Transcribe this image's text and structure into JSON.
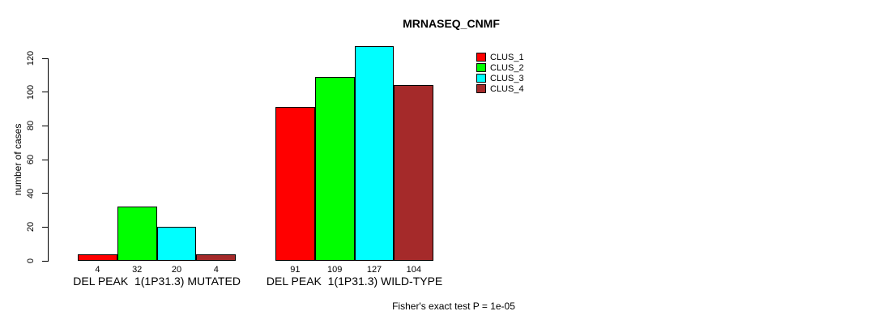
{
  "chart_data": {
    "type": "bar",
    "title": "MRNASEQ_CNMF",
    "ylabel": "number of cases",
    "xlabel": "",
    "ylim": [
      0,
      130
    ],
    "yticks": [
      0,
      20,
      40,
      60,
      80,
      100,
      120
    ],
    "grid": false,
    "legend_position": "top-right",
    "categories": [
      "DEL PEAK  1(1P31.3) MUTATED",
      "DEL PEAK  1(1P31.3) WILD-TYPE"
    ],
    "series": [
      {
        "name": "CLUS_1",
        "color": "#ff0000",
        "values": [
          4,
          91
        ]
      },
      {
        "name": "CLUS_2",
        "color": "#00ff00",
        "values": [
          32,
          109
        ]
      },
      {
        "name": "CLUS_3",
        "color": "#00ffff",
        "values": [
          20,
          127
        ]
      },
      {
        "name": "CLUS_4",
        "color": "#a52a2a",
        "values": [
          4,
          104
        ]
      }
    ],
    "show_bar_values": true,
    "bar_border_color": "#000000",
    "caption": "Fisher's exact test P = 1e-05"
  }
}
